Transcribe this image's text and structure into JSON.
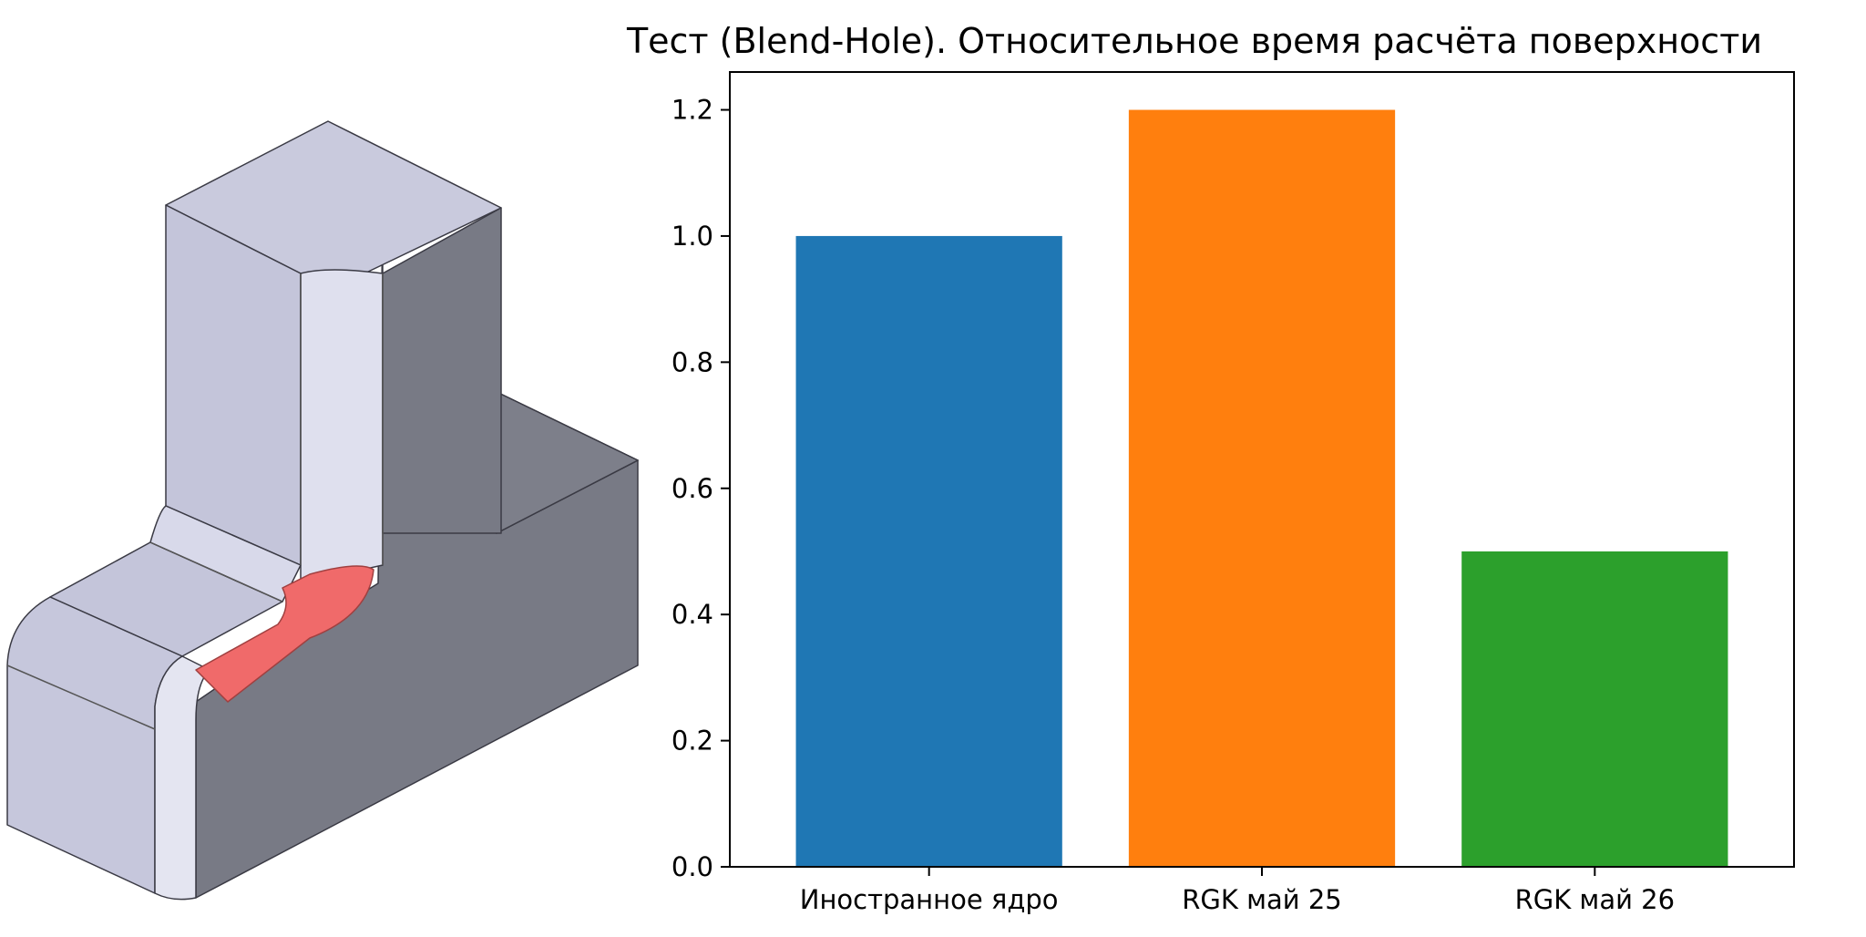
{
  "chart_data": {
    "type": "bar",
    "title": "Тест (Blend-Hole). Относительное время расчёта поверхности",
    "categories": [
      "Иностранное ядро",
      "RGK май 25",
      "RGK май 26"
    ],
    "values": [
      1.0,
      1.2,
      0.5
    ],
    "colors": [
      "#1f77b4",
      "#ff7f0e",
      "#2ca02c"
    ],
    "ylim": [
      0,
      1.26
    ],
    "yticks": [
      "0.0",
      "0.2",
      "0.4",
      "0.6",
      "0.8",
      "1.0",
      "1.2"
    ],
    "ytick_values": [
      0,
      0.2,
      0.4,
      0.6,
      0.8,
      1.0,
      1.2
    ],
    "xlabel": "",
    "ylabel": "",
    "grid": false,
    "legend": "none"
  },
  "model": {
    "body_color": "#c4c5da",
    "shadow_color": "#787a85",
    "highlight_color": "#f06a6a"
  }
}
